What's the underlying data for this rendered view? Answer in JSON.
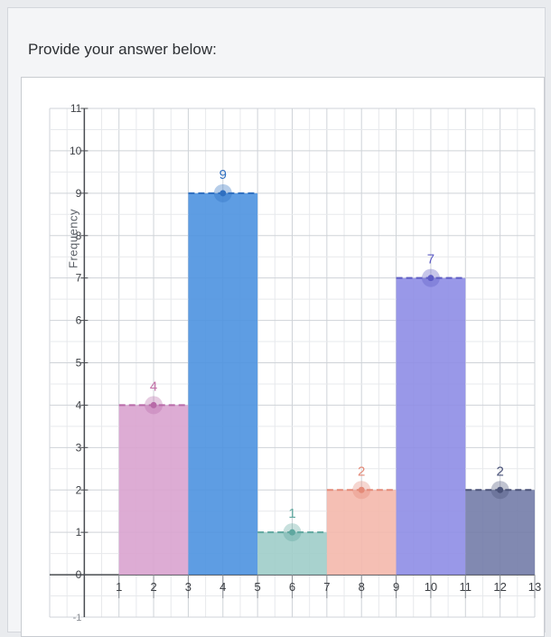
{
  "prompt": "Provide your answer below:",
  "chart_data": {
    "type": "bar",
    "title": "",
    "xlabel": "",
    "ylabel": "Frequency",
    "xlim": [
      -1,
      13
    ],
    "ylim": [
      -1,
      11
    ],
    "grid": true,
    "x_ticks": [
      1,
      2,
      3,
      4,
      5,
      6,
      7,
      8,
      9,
      10,
      11,
      12,
      13
    ],
    "y_ticks": [
      0,
      1,
      2,
      3,
      4,
      5,
      6,
      7,
      8,
      9,
      10,
      11
    ],
    "x_tick_labels": [
      "1",
      "2",
      "3",
      "4",
      "5",
      "6",
      "7",
      "8",
      "9",
      "10",
      "11",
      "12",
      "13"
    ],
    "y_tick_labels": [
      "0",
      "1",
      "2",
      "3",
      "4",
      "5",
      "6",
      "7",
      "8",
      "9",
      "10",
      "11"
    ],
    "neg_tick_label": "-1",
    "bars": [
      {
        "x0": 1,
        "x1": 3,
        "value": 4,
        "label": "4",
        "color": "#d9a3cf",
        "edge": "#b86aa8",
        "label_color": "#c26ea6"
      },
      {
        "x0": 3,
        "x1": 5,
        "value": 9,
        "label": "9",
        "color": "#4d92e0",
        "edge": "#2f6fc0",
        "label_color": "#2f6fc0"
      },
      {
        "x0": 5,
        "x1": 7,
        "value": 1,
        "label": "1",
        "color": "#9fcdc9",
        "edge": "#5fa79f",
        "label_color": "#5fa79f"
      },
      {
        "x0": 7,
        "x1": 9,
        "value": 2,
        "label": "2",
        "color": "#f4b8ac",
        "edge": "#e48a78",
        "label_color": "#e48a78"
      },
      {
        "x0": 9,
        "x1": 11,
        "value": 7,
        "label": "7",
        "color": "#8e8de6",
        "edge": "#5e5cc4",
        "label_color": "#5e5cc4"
      },
      {
        "x0": 11,
        "x1": 13,
        "value": 2,
        "label": "2",
        "color": "#737ca8",
        "edge": "#4a5278",
        "label_color": "#4a5278"
      }
    ]
  }
}
